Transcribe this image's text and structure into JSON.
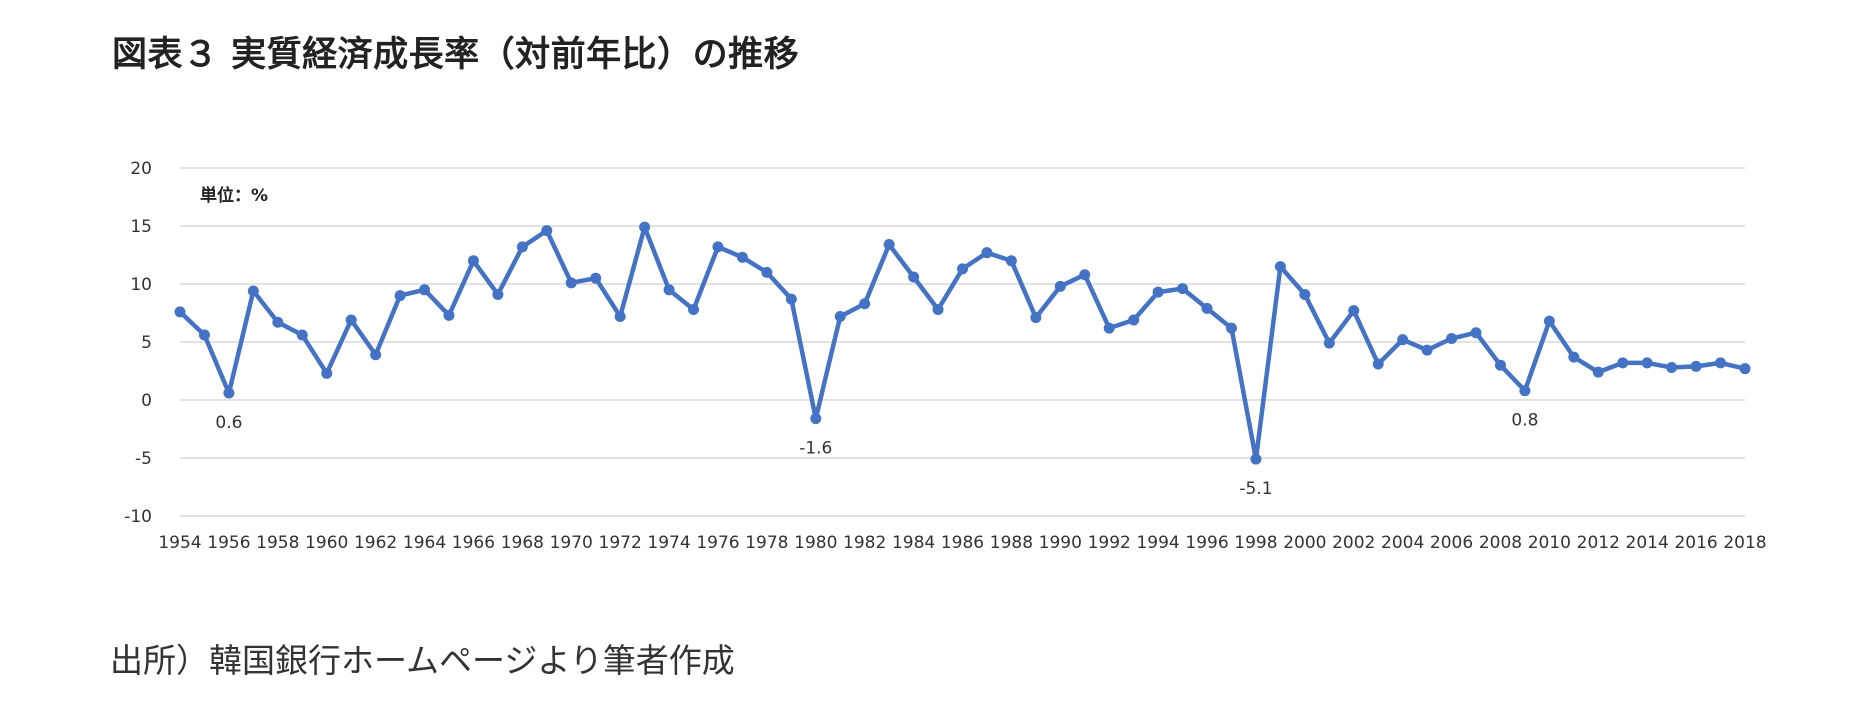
{
  "title": "図表３ 実質経済成長率（対前年比）の推移",
  "source": "出所）韓国銀行ホームページより筆者作成",
  "colors": {
    "line": "#4472C4",
    "grid": "#D9D9D9",
    "text": "#333333"
  },
  "chart_data": {
    "type": "line",
    "unit_label": "単位：%",
    "x": [
      1954,
      1955,
      1956,
      1957,
      1958,
      1959,
      1960,
      1961,
      1962,
      1963,
      1964,
      1965,
      1966,
      1967,
      1968,
      1969,
      1970,
      1971,
      1972,
      1973,
      1974,
      1975,
      1976,
      1977,
      1978,
      1979,
      1980,
      1981,
      1982,
      1983,
      1984,
      1985,
      1986,
      1987,
      1988,
      1989,
      1990,
      1991,
      1992,
      1993,
      1994,
      1995,
      1996,
      1997,
      1998,
      1999,
      2000,
      2001,
      2002,
      2003,
      2004,
      2005,
      2006,
      2007,
      2008,
      2009,
      2010,
      2011,
      2012,
      2013,
      2014,
      2015,
      2016,
      2017,
      2018
    ],
    "series": [
      {
        "values": [
          7.6,
          5.6,
          0.6,
          9.4,
          6.7,
          5.6,
          2.3,
          6.9,
          3.9,
          9.0,
          9.5,
          7.3,
          12.0,
          9.1,
          13.2,
          14.6,
          10.1,
          10.5,
          7.2,
          14.9,
          9.5,
          7.8,
          13.2,
          12.3,
          11.0,
          8.7,
          -1.6,
          7.2,
          8.3,
          13.4,
          10.6,
          7.8,
          11.3,
          12.7,
          12.0,
          7.1,
          9.8,
          10.8,
          6.2,
          6.9,
          9.3,
          9.6,
          7.9,
          6.2,
          -5.1,
          11.5,
          9.1,
          4.9,
          7.7,
          3.1,
          5.2,
          4.3,
          5.3,
          5.8,
          3.0,
          0.8,
          6.8,
          3.7,
          2.4,
          3.2,
          3.2,
          2.8,
          2.9,
          3.2,
          2.7
        ]
      }
    ],
    "annotations": [
      {
        "x": 1956,
        "y": 0.6,
        "text": "0.6"
      },
      {
        "x": 1980,
        "y": -1.6,
        "text": "-1.6"
      },
      {
        "x": 1998,
        "y": -5.1,
        "text": "-5.1"
      },
      {
        "x": 2009,
        "y": 0.8,
        "text": "0.8"
      }
    ],
    "xticks": [
      1954,
      1956,
      1958,
      1960,
      1962,
      1964,
      1966,
      1968,
      1970,
      1972,
      1974,
      1976,
      1978,
      1980,
      1982,
      1984,
      1986,
      1988,
      1990,
      1992,
      1994,
      1996,
      1998,
      2000,
      2002,
      2004,
      2006,
      2008,
      2010,
      2012,
      2014,
      2016,
      2018
    ],
    "yticks": [
      20,
      15,
      10,
      5,
      0,
      -5,
      -10
    ],
    "xlim": [
      1954,
      2018
    ],
    "ylim": [
      -10,
      20
    ],
    "grid": true,
    "legend": "none"
  }
}
